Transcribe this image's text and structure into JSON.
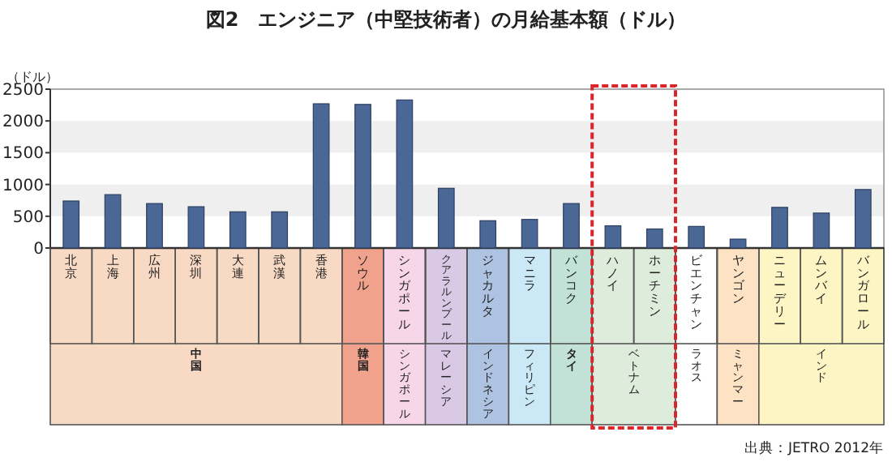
{
  "chart_data": {
    "type": "bar",
    "title": "図2　エンジニア（中堅技術者）の月給基本額（ドル）",
    "ylabel": "（ドル）",
    "categories": [
      "北京",
      "上海",
      "広州",
      "深圳",
      "大連",
      "武漢",
      "香港",
      "ソウル",
      "シンガポール",
      "クアラルンプール",
      "ジャカルタ",
      "マニラ",
      "バンコク",
      "ハノイ",
      "ホーチミン",
      "ビエンチャン",
      "ヤンゴン",
      "ニューデリー",
      "ムンバイ",
      "バンガロール"
    ],
    "values": [
      740,
      840,
      700,
      650,
      570,
      570,
      2270,
      2260,
      2330,
      940,
      430,
      450,
      700,
      350,
      300,
      340,
      140,
      640,
      550,
      920
    ],
    "color": "#4b6795",
    "ylim": [
      0,
      2500
    ],
    "yticks": [
      0,
      500,
      1000,
      1500,
      2000,
      2500
    ],
    "bands": [
      {
        "axis": "y",
        "from": 500,
        "to": 1000,
        "color": "#efefef"
      },
      {
        "axis": "y",
        "from": 1500,
        "to": 2000,
        "color": "#efefef"
      }
    ],
    "annotations": [
      "中国",
      "韓国",
      "シンガポール",
      "マレーシア",
      "インドネシア",
      "フィリピン",
      "タイ",
      "ベトナム",
      "ラオス",
      "ミャンマー",
      "インド",
      "出典：JETRO 2012年"
    ]
  }
}
